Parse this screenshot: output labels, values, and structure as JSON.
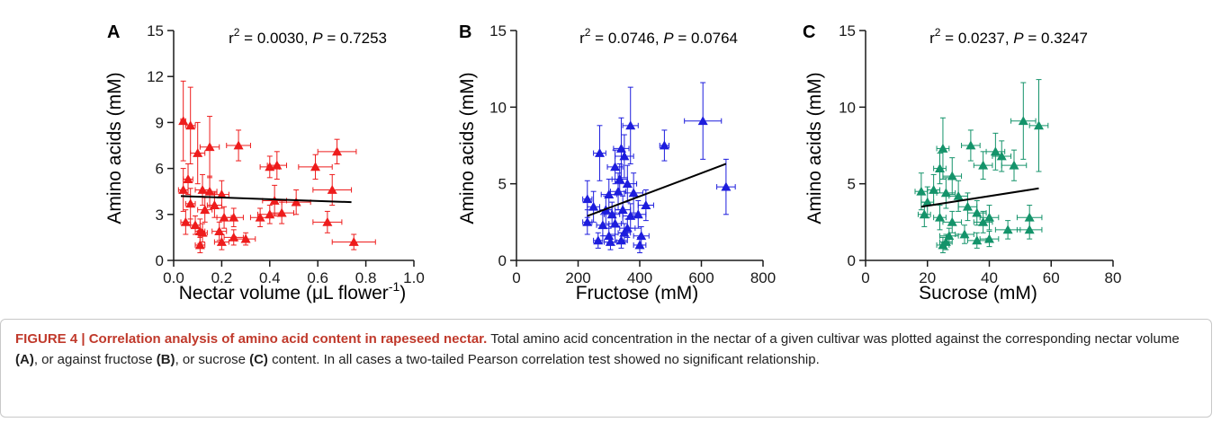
{
  "chart_data": [
    {
      "type": "scatter",
      "panel": "A",
      "xlabel_main": "Nectar volume (",
      "xlabel_mu": "μ",
      "xlabel_unit": "L flower",
      "xlabel_sup": "-1",
      "xlabel_end": ")",
      "ylabel": "Amino acids (mM)",
      "stat_r": "r",
      "stat_sup": "2",
      "stat_mid": " = 0.0030, ",
      "stat_p": "P",
      "stat_end": " = 0.7253",
      "xlim": [
        0,
        1.0
      ],
      "ylim": [
        0,
        15
      ],
      "xticks": [
        0.0,
        0.2,
        0.4,
        0.6,
        0.8,
        1.0
      ],
      "xtick_labels": [
        "0.0",
        "0.2",
        "0.4",
        "0.6",
        "0.8",
        "1.0"
      ],
      "yticks": [
        0,
        3,
        6,
        9,
        12,
        15
      ],
      "ytick_labels": [
        "0",
        "3",
        "6",
        "9",
        "12",
        "15"
      ],
      "color": "#ee1c1c",
      "fit": {
        "x": [
          0.03,
          0.74
        ],
        "y": [
          4.2,
          3.8
        ]
      },
      "points": [
        {
          "x": 0.04,
          "y": 9.1,
          "xe": 0.01,
          "ye": 2.6
        },
        {
          "x": 0.07,
          "y": 8.8,
          "xe": 0.02,
          "ye": 2.5
        },
        {
          "x": 0.1,
          "y": 7.0,
          "xe": 0.03,
          "ye": 2.0
        },
        {
          "x": 0.15,
          "y": 7.4,
          "xe": 0.04,
          "ye": 2.0
        },
        {
          "x": 0.27,
          "y": 7.5,
          "xe": 0.05,
          "ye": 1.0
        },
        {
          "x": 0.68,
          "y": 7.1,
          "xe": 0.08,
          "ye": 0.8
        },
        {
          "x": 0.4,
          "y": 6.1,
          "xe": 0.04,
          "ye": 0.7
        },
        {
          "x": 0.43,
          "y": 6.2,
          "xe": 0.04,
          "ye": 0.9
        },
        {
          "x": 0.59,
          "y": 6.1,
          "xe": 0.07,
          "ye": 0.8
        },
        {
          "x": 0.04,
          "y": 4.6,
          "xe": 0.02,
          "ye": 1.4
        },
        {
          "x": 0.06,
          "y": 5.3,
          "xe": 0.02,
          "ye": 1.0
        },
        {
          "x": 0.12,
          "y": 4.6,
          "xe": 0.03,
          "ye": 1.0
        },
        {
          "x": 0.15,
          "y": 4.5,
          "xe": 0.03,
          "ye": 1.0
        },
        {
          "x": 0.2,
          "y": 4.3,
          "xe": 0.03,
          "ye": 0.9
        },
        {
          "x": 0.66,
          "y": 4.6,
          "xe": 0.08,
          "ye": 1.0
        },
        {
          "x": 0.07,
          "y": 3.7,
          "xe": 0.02,
          "ye": 1.0
        },
        {
          "x": 0.13,
          "y": 3.3,
          "xe": 0.03,
          "ye": 0.8
        },
        {
          "x": 0.17,
          "y": 3.6,
          "xe": 0.03,
          "ye": 0.8
        },
        {
          "x": 0.21,
          "y": 2.8,
          "xe": 0.03,
          "ye": 0.7
        },
        {
          "x": 0.25,
          "y": 2.8,
          "xe": 0.04,
          "ye": 0.6
        },
        {
          "x": 0.36,
          "y": 2.8,
          "xe": 0.04,
          "ye": 0.6
        },
        {
          "x": 0.4,
          "y": 3.0,
          "xe": 0.05,
          "ye": 0.6
        },
        {
          "x": 0.45,
          "y": 3.1,
          "xe": 0.05,
          "ye": 0.7
        },
        {
          "x": 0.51,
          "y": 3.8,
          "xe": 0.06,
          "ye": 0.8
        },
        {
          "x": 0.42,
          "y": 3.9,
          "xe": 0.05,
          "ye": 1.0
        },
        {
          "x": 0.05,
          "y": 2.5,
          "xe": 0.02,
          "ye": 0.8
        },
        {
          "x": 0.09,
          "y": 2.3,
          "xe": 0.02,
          "ye": 0.6
        },
        {
          "x": 0.11,
          "y": 1.9,
          "xe": 0.02,
          "ye": 0.8
        },
        {
          "x": 0.12,
          "y": 1.8,
          "xe": 0.02,
          "ye": 0.6
        },
        {
          "x": 0.19,
          "y": 1.9,
          "xe": 0.03,
          "ye": 0.6
        },
        {
          "x": 0.25,
          "y": 1.5,
          "xe": 0.04,
          "ye": 0.5
        },
        {
          "x": 0.3,
          "y": 1.4,
          "xe": 0.04,
          "ye": 0.4
        },
        {
          "x": 0.2,
          "y": 1.2,
          "xe": 0.03,
          "ye": 0.5
        },
        {
          "x": 0.11,
          "y": 1.0,
          "xe": 0.02,
          "ye": 0.5
        },
        {
          "x": 0.64,
          "y": 2.5,
          "xe": 0.06,
          "ye": 0.7
        },
        {
          "x": 0.75,
          "y": 1.2,
          "xe": 0.09,
          "ye": 0.5
        }
      ]
    },
    {
      "type": "scatter",
      "panel": "B",
      "xlabel": "Fructose (mM)",
      "ylabel": "Amino acids (mM)",
      "stat_r": "r",
      "stat_sup": "2",
      "stat_mid": " = 0.0746, ",
      "stat_p": "P",
      "stat_end": " = 0.0764",
      "xlim": [
        0,
        800
      ],
      "ylim": [
        0,
        15
      ],
      "xticks": [
        0,
        200,
        400,
        600,
        800
      ],
      "xtick_labels": [
        "0",
        "200",
        "400",
        "600",
        "800"
      ],
      "yticks": [
        0,
        5,
        10,
        15
      ],
      "ytick_labels": [
        "0",
        "5",
        "10",
        "15"
      ],
      "color": "#1d1ddd",
      "fit": {
        "x": [
          230,
          680
        ],
        "y": [
          2.9,
          6.3
        ]
      },
      "points": [
        {
          "x": 605,
          "y": 9.1,
          "xe": 60,
          "ye": 2.5
        },
        {
          "x": 370,
          "y": 8.8,
          "xe": 25,
          "ye": 2.5
        },
        {
          "x": 680,
          "y": 4.8,
          "xe": 30,
          "ye": 1.8
        },
        {
          "x": 480,
          "y": 7.5,
          "xe": 15,
          "ye": 1.0
        },
        {
          "x": 270,
          "y": 7.0,
          "xe": 20,
          "ye": 1.8
        },
        {
          "x": 340,
          "y": 7.3,
          "xe": 25,
          "ye": 2.0
        },
        {
          "x": 350,
          "y": 6.8,
          "xe": 30,
          "ye": 1.4
        },
        {
          "x": 320,
          "y": 6.1,
          "xe": 25,
          "ye": 1.1
        },
        {
          "x": 335,
          "y": 5.3,
          "xe": 25,
          "ye": 1.0
        },
        {
          "x": 360,
          "y": 5.0,
          "xe": 30,
          "ye": 1.2
        },
        {
          "x": 230,
          "y": 4.0,
          "xe": 15,
          "ye": 1.2
        },
        {
          "x": 250,
          "y": 3.5,
          "xe": 20,
          "ye": 1.0
        },
        {
          "x": 300,
          "y": 4.3,
          "xe": 25,
          "ye": 1.0
        },
        {
          "x": 330,
          "y": 4.5,
          "xe": 25,
          "ye": 1.2
        },
        {
          "x": 380,
          "y": 4.4,
          "xe": 30,
          "ye": 1.3
        },
        {
          "x": 420,
          "y": 3.6,
          "xe": 25,
          "ye": 1.0
        },
        {
          "x": 290,
          "y": 3.3,
          "xe": 20,
          "ye": 0.9
        },
        {
          "x": 310,
          "y": 3.0,
          "xe": 25,
          "ye": 0.8
        },
        {
          "x": 345,
          "y": 3.3,
          "xe": 25,
          "ye": 0.9
        },
        {
          "x": 370,
          "y": 2.9,
          "xe": 25,
          "ye": 0.8
        },
        {
          "x": 395,
          "y": 3.0,
          "xe": 25,
          "ye": 0.9
        },
        {
          "x": 230,
          "y": 2.5,
          "xe": 15,
          "ye": 0.8
        },
        {
          "x": 280,
          "y": 2.3,
          "xe": 20,
          "ye": 0.7
        },
        {
          "x": 320,
          "y": 2.4,
          "xe": 20,
          "ye": 0.7
        },
        {
          "x": 360,
          "y": 2.1,
          "xe": 25,
          "ye": 0.6
        },
        {
          "x": 300,
          "y": 1.6,
          "xe": 20,
          "ye": 0.5
        },
        {
          "x": 265,
          "y": 1.3,
          "xe": 15,
          "ye": 0.5
        },
        {
          "x": 305,
          "y": 1.2,
          "xe": 20,
          "ye": 0.5
        },
        {
          "x": 340,
          "y": 1.3,
          "xe": 20,
          "ye": 0.5
        },
        {
          "x": 405,
          "y": 1.6,
          "xe": 25,
          "ye": 0.6
        },
        {
          "x": 400,
          "y": 1.0,
          "xe": 20,
          "ye": 0.5
        },
        {
          "x": 350,
          "y": 1.8,
          "xe": 20,
          "ye": 0.6
        }
      ]
    },
    {
      "type": "scatter",
      "panel": "C",
      "xlabel": "Sucrose (mM)",
      "ylabel": "Amino acids (mM)",
      "stat_r": "r",
      "stat_sup": "2",
      "stat_mid": " = 0.0237, ",
      "stat_p": "P",
      "stat_end": " = 0.3247",
      "xlim": [
        0,
        80
      ],
      "ylim": [
        0,
        15
      ],
      "xticks": [
        0,
        20,
        40,
        60,
        80
      ],
      "xtick_labels": [
        "0",
        "20",
        "40",
        "60",
        "80"
      ],
      "yticks": [
        0,
        5,
        10,
        15
      ],
      "ytick_labels": [
        "0",
        "5",
        "10",
        "15"
      ],
      "color": "#14936a",
      "fit": {
        "x": [
          18,
          56
        ],
        "y": [
          3.5,
          4.7
        ]
      },
      "points": [
        {
          "x": 51,
          "y": 9.1,
          "xe": 4,
          "ye": 2.5
        },
        {
          "x": 56,
          "y": 8.8,
          "xe": 3,
          "ye": 3.0
        },
        {
          "x": 34,
          "y": 7.5,
          "xe": 3,
          "ye": 1.0
        },
        {
          "x": 25,
          "y": 7.3,
          "xe": 2,
          "ye": 2.0
        },
        {
          "x": 42,
          "y": 7.1,
          "xe": 3,
          "ye": 1.2
        },
        {
          "x": 44,
          "y": 6.8,
          "xe": 3,
          "ye": 1.0
        },
        {
          "x": 38,
          "y": 6.2,
          "xe": 3,
          "ye": 0.9
        },
        {
          "x": 48,
          "y": 6.2,
          "xe": 4,
          "ye": 1.0
        },
        {
          "x": 28,
          "y": 5.5,
          "xe": 3,
          "ye": 1.2
        },
        {
          "x": 24,
          "y": 6.0,
          "xe": 2,
          "ye": 1.0
        },
        {
          "x": 18,
          "y": 4.5,
          "xe": 2,
          "ye": 1.2
        },
        {
          "x": 22,
          "y": 4.6,
          "xe": 2,
          "ye": 1.0
        },
        {
          "x": 26,
          "y": 4.4,
          "xe": 3,
          "ye": 1.0
        },
        {
          "x": 30,
          "y": 4.2,
          "xe": 3,
          "ye": 1.0
        },
        {
          "x": 20,
          "y": 3.8,
          "xe": 2,
          "ye": 1.0
        },
        {
          "x": 33,
          "y": 3.5,
          "xe": 3,
          "ye": 0.9
        },
        {
          "x": 36,
          "y": 3.1,
          "xe": 3,
          "ye": 0.8
        },
        {
          "x": 40,
          "y": 2.8,
          "xe": 3,
          "ye": 0.8
        },
        {
          "x": 19,
          "y": 3.0,
          "xe": 2,
          "ye": 0.8
        },
        {
          "x": 24,
          "y": 2.8,
          "xe": 2,
          "ye": 0.8
        },
        {
          "x": 28,
          "y": 2.5,
          "xe": 3,
          "ye": 0.7
        },
        {
          "x": 38,
          "y": 2.5,
          "xe": 3,
          "ye": 0.7
        },
        {
          "x": 53,
          "y": 2.8,
          "xe": 4,
          "ye": 0.8
        },
        {
          "x": 46,
          "y": 2.0,
          "xe": 4,
          "ye": 0.6
        },
        {
          "x": 53,
          "y": 2.0,
          "xe": 4,
          "ye": 0.6
        },
        {
          "x": 27,
          "y": 1.6,
          "xe": 3,
          "ye": 0.5
        },
        {
          "x": 32,
          "y": 1.7,
          "xe": 3,
          "ye": 0.6
        },
        {
          "x": 36,
          "y": 1.3,
          "xe": 3,
          "ye": 0.5
        },
        {
          "x": 40,
          "y": 1.4,
          "xe": 3,
          "ye": 0.5
        },
        {
          "x": 25,
          "y": 1.0,
          "xe": 2,
          "ye": 0.5
        },
        {
          "x": 26,
          "y": 1.2,
          "xe": 2,
          "ye": 0.5
        }
      ]
    }
  ],
  "caption": {
    "figure_label": "FIGURE 4 | Correlation analysis of amino acid content in rapeseed nectar.",
    "text1": " Total amino acid concentration in the nectar of a given cultivar was plotted against the corresponding nectar volume ",
    "ref_a": "(A)",
    "text2": ", or against fructose ",
    "ref_b": "(B)",
    "text3": ", or sucrose ",
    "ref_c": "(C)",
    "text4": " content. In all cases a two-tailed Pearson correlation test showed no significant relationship."
  }
}
